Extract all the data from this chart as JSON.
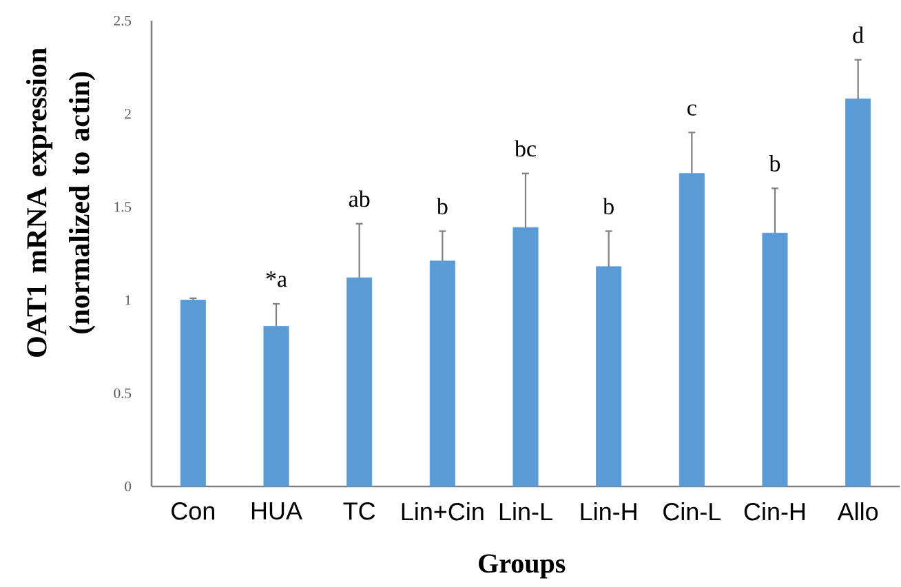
{
  "chart_data": {
    "type": "bar",
    "xlabel": "Groups",
    "ylabel": "OAT1 mRNA expression (normalized to actin)",
    "categories": [
      "Con",
      "HUA",
      "TC",
      "Lin+Cin",
      "Lin-L",
      "Lin-H",
      "Cin-L",
      "Cin-H",
      "Allo"
    ],
    "values": [
      1.0,
      0.86,
      1.12,
      1.21,
      1.39,
      1.18,
      1.68,
      1.36,
      2.08
    ],
    "errors": [
      [
        1.0,
        1.01
      ],
      [
        0.86,
        0.98
      ],
      [
        1.12,
        1.41
      ],
      [
        1.21,
        1.37
      ],
      [
        1.39,
        1.68
      ],
      [
        1.18,
        1.37
      ],
      [
        1.68,
        1.9
      ],
      [
        1.36,
        1.6
      ],
      [
        2.08,
        2.29
      ]
    ],
    "color": "#5b9bd5",
    "ylim": [
      0,
      2.5
    ],
    "yticks": [
      0,
      0.5,
      1,
      1.5,
      2,
      2.5
    ],
    "annotations": [
      {
        "text": "*a",
        "x": "HUA",
        "y": 0.98
      },
      {
        "text": "ab",
        "x": "TC",
        "y": 1.41
      },
      {
        "text": "b",
        "x": "Lin+Cin",
        "y": 1.37
      },
      {
        "text": "bc",
        "x": "Lin-L",
        "y": 1.68
      },
      {
        "text": "b",
        "x": "Lin-H",
        "y": 1.37
      },
      {
        "text": "c",
        "x": "Cin-L",
        "y": 1.9
      },
      {
        "text": "b",
        "x": "Cin-H",
        "y": 1.6
      },
      {
        "text": "d",
        "x": "Allo",
        "y": 2.29
      }
    ]
  }
}
